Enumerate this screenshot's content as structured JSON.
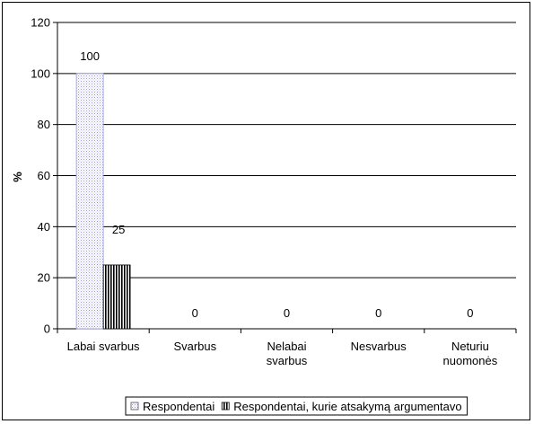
{
  "chart_data": {
    "type": "bar",
    "categories": [
      "Labai svarbus",
      "Svarbus",
      "Nelabai svarbus",
      "Nesvarbus",
      "Neturiu nuomonės"
    ],
    "category_lines": [
      [
        "Labai svarbus"
      ],
      [
        "Svarbus"
      ],
      [
        "Nelabai",
        "svarbus"
      ],
      [
        "Nesvarbus"
      ],
      [
        "Neturiu",
        "nuomonės"
      ]
    ],
    "series": [
      {
        "name": "Respondentai",
        "values": [
          100,
          0,
          0,
          0,
          0
        ],
        "pattern": "dots",
        "color": "#c9c9f0"
      },
      {
        "name": "Respondentai, kurie atsakymą argumentavo",
        "values": [
          25,
          0,
          0,
          0,
          0
        ],
        "pattern": "vertical-stripes",
        "color": "#000000"
      }
    ],
    "data_labels": [
      "100",
      "25",
      "0",
      "0",
      "0",
      "0"
    ],
    "ylabel": "%",
    "ylim": [
      0,
      120
    ],
    "yticks": [
      0,
      20,
      40,
      60,
      80,
      100,
      120
    ],
    "grid": true,
    "legend_position": "bottom-center"
  }
}
